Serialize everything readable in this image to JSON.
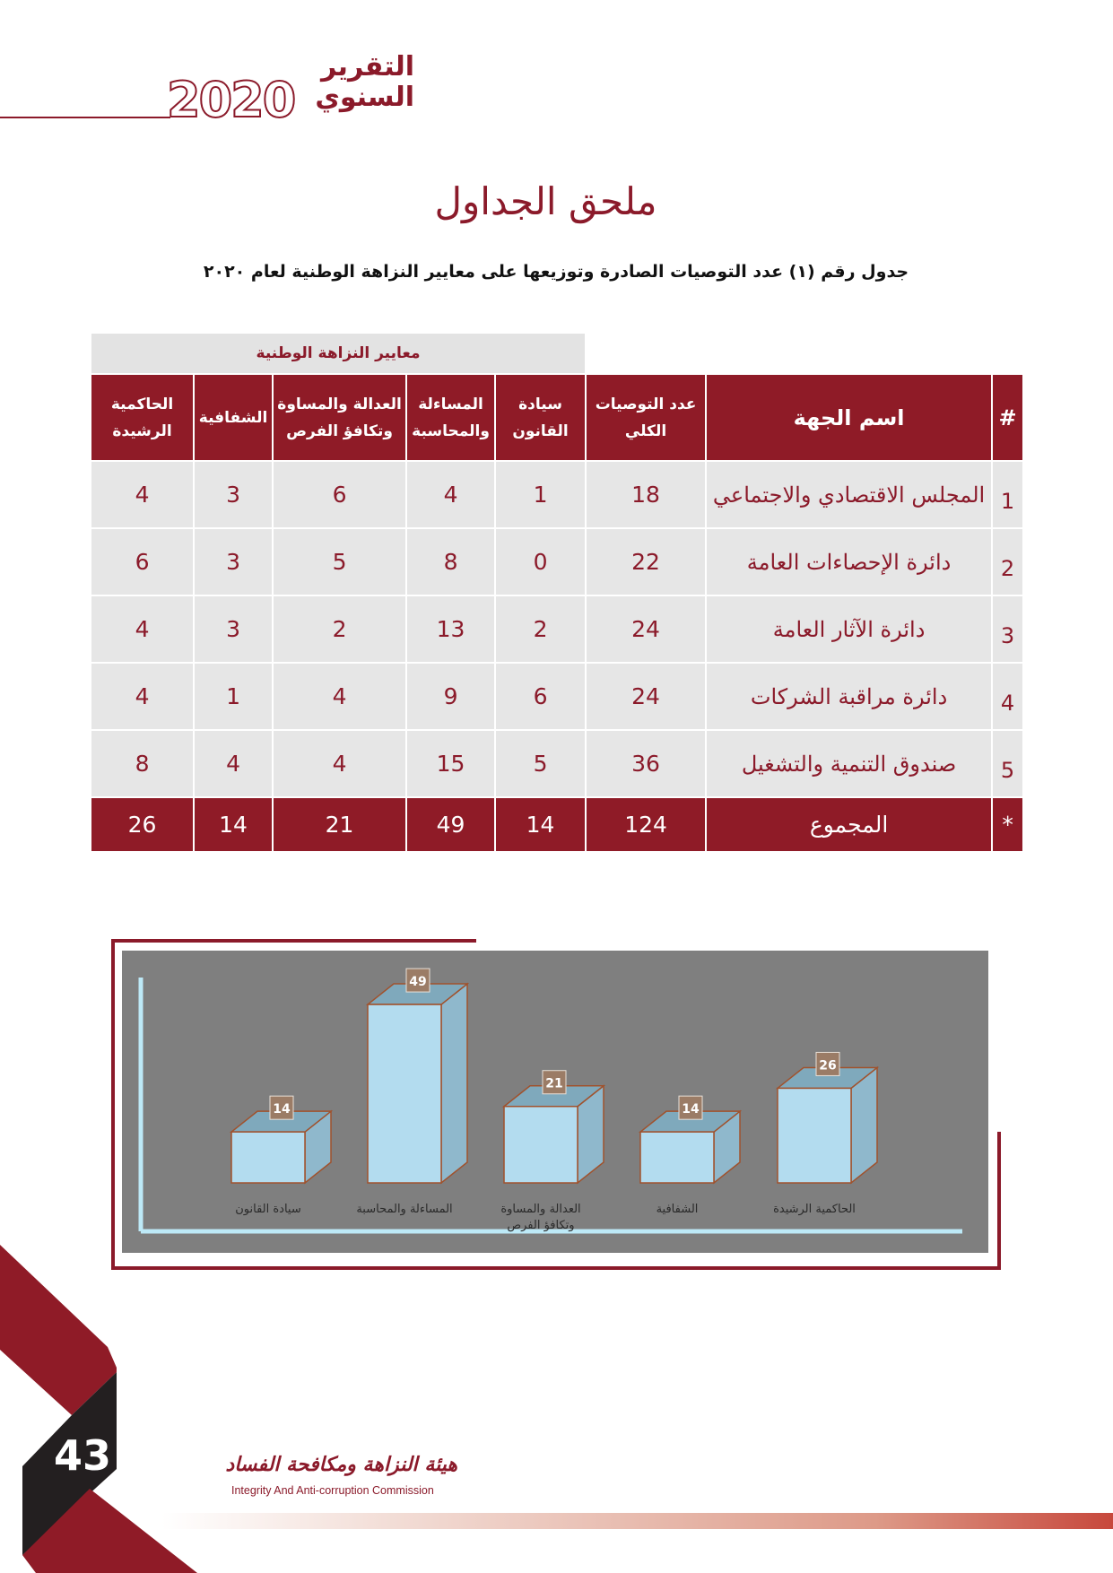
{
  "header": {
    "logo_text": "التقرير السنوي",
    "logo_year": "2020"
  },
  "title": "ملحق الجداول",
  "subtitle": "جدول رقم (١) عدد التوصيات الصادرة وتوزيعها على معايير النزاهة الوطنية لعام ٢٠٢٠",
  "table": {
    "group_header": "معايير النزاهة الوطنية",
    "columns": [
      "#",
      "اسم الجهة",
      "عدد التوصيات الكلي",
      "سيادة القانون",
      "المساءلة والمحاسبة",
      "العدالة والمساوة وتكافؤ الفرص",
      "الشفافية",
      "الحاكمية الرشيدة"
    ],
    "rows": [
      [
        "1",
        "المجلس الاقتصادي والاجتماعي",
        "18",
        "1",
        "4",
        "6",
        "3",
        "4"
      ],
      [
        "2",
        "دائرة الإحصاءات العامة",
        "22",
        "0",
        "8",
        "5",
        "3",
        "6"
      ],
      [
        "3",
        "دائرة الآثار العامة",
        "24",
        "2",
        "13",
        "2",
        "3",
        "4"
      ],
      [
        "4",
        "دائرة مراقبة الشركات",
        "24",
        "6",
        "9",
        "4",
        "1",
        "4"
      ],
      [
        "5",
        "صندوق التنمية والتشغيل",
        "36",
        "5",
        "15",
        "4",
        "4",
        "8"
      ]
    ],
    "total": [
      "*",
      "المجموع",
      "124",
      "14",
      "49",
      "21",
      "14",
      "26"
    ]
  },
  "chart_data": {
    "type": "bar",
    "categories": [
      "سيادة القانون",
      "المساءلة والمحاسبة",
      "العدالة والمساوة وتكافؤ الفرص",
      "الشفافية",
      "الحاكمية الرشيدة"
    ],
    "values": [
      14,
      49,
      21,
      14,
      26
    ],
    "title": "",
    "xlabel": "",
    "ylabel": "",
    "grid": false,
    "colors": {
      "bar_front": "#b3dcef",
      "bar_side": "#8fb8cc",
      "bar_top": "#7fa9bc",
      "edge": "#a0522d",
      "label_bg": "#9b7c66",
      "background": "#7f7f7f",
      "axis": "#bde9f7"
    }
  },
  "footer": {
    "page_number": "43",
    "org_ar": "هيئة النزاهة ومكافحة الفساد",
    "org_en": "Integrity And Anti-corruption Commission"
  },
  "colors": {
    "brand": "#8f1b27",
    "dark": "#231f20"
  }
}
